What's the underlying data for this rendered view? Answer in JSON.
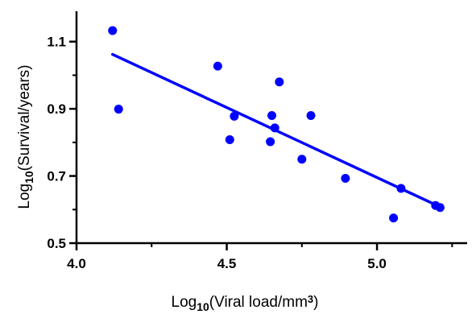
{
  "chart_data": {
    "type": "scatter",
    "title": "",
    "xlabel": {
      "prefix": "Log",
      "subscript": "10",
      "text": "(Viral load/mm",
      "superscript": "3",
      "suffix": ")"
    },
    "ylabel": {
      "prefix": "Log",
      "subscript": "10",
      "text": "(Survival/years)"
    },
    "xlim": [
      4.0,
      5.3
    ],
    "ylim": [
      0.5,
      1.2
    ],
    "xticks": [
      4.0,
      4.5,
      5.0
    ],
    "xtick_labels": [
      "4.0",
      "4.5",
      "5.0"
    ],
    "xticks_minor": [
      4.25,
      4.75,
      5.25
    ],
    "yticks": [
      0.5,
      0.7,
      0.9,
      1.1
    ],
    "ytick_labels": [
      "0.5",
      "0.7",
      "0.9",
      "1.1"
    ],
    "yticks_minor": [
      0.6,
      0.8,
      1.0
    ],
    "grid": false,
    "color": "#0000ff",
    "points": [
      {
        "x": 4.12,
        "y": 1.133
      },
      {
        "x": 4.14,
        "y": 0.899
      },
      {
        "x": 4.47,
        "y": 1.027
      },
      {
        "x": 4.51,
        "y": 0.808
      },
      {
        "x": 4.525,
        "y": 0.878
      },
      {
        "x": 4.645,
        "y": 0.802
      },
      {
        "x": 4.65,
        "y": 0.88
      },
      {
        "x": 4.66,
        "y": 0.843
      },
      {
        "x": 4.675,
        "y": 0.98
      },
      {
        "x": 4.75,
        "y": 0.75
      },
      {
        "x": 4.78,
        "y": 0.88
      },
      {
        "x": 4.895,
        "y": 0.693
      },
      {
        "x": 5.055,
        "y": 0.575
      },
      {
        "x": 5.08,
        "y": 0.663
      },
      {
        "x": 5.195,
        "y": 0.612
      },
      {
        "x": 5.21,
        "y": 0.606
      }
    ],
    "trendline": {
      "x1": 4.12,
      "y1": 1.062,
      "x2": 5.21,
      "y2": 0.608
    }
  }
}
